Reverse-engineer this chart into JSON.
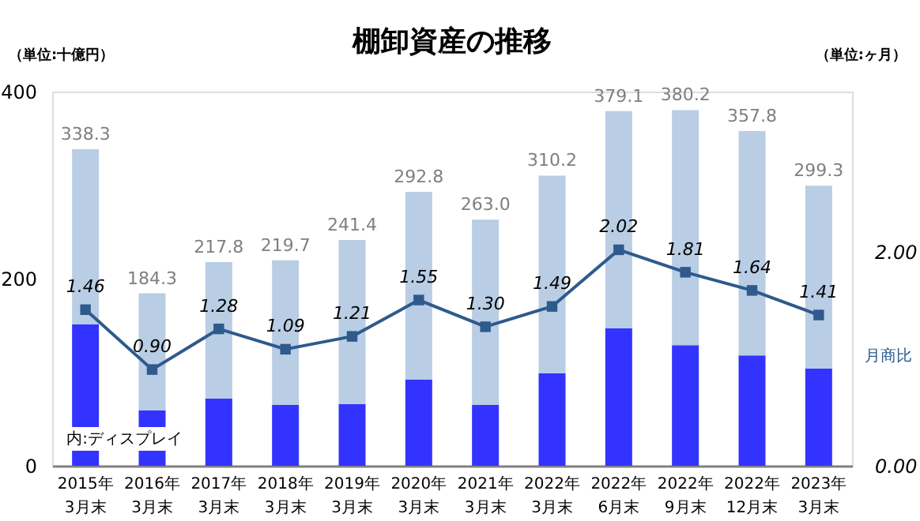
{
  "chart_data": {
    "type": "bar",
    "stacked": true,
    "title": "棚卸資産の推移",
    "ylabel": "（単位:十億円）",
    "y2label": "（単位:ヶ月）",
    "categories": [
      "2015年\n3月末",
      "2016年\n3月末",
      "2017年\n3月末",
      "2018年\n3月末",
      "2019年\n3月末",
      "2020年\n3月末",
      "2021年\n3月末",
      "2022年\n3月末",
      "2022年\n6月末",
      "2022年\n9月末",
      "2022年\n12月末",
      "2023年\n3月末"
    ],
    "series": [
      {
        "name": "内:ディスプレイ",
        "color": "#3333ff",
        "values": [
          151,
          59,
          72,
          65,
          66,
          92,
          65,
          99,
          147,
          129,
          118,
          104
        ]
      },
      {
        "color": "#b9cde5",
        "values": [
          187.3,
          125.3,
          145.8,
          154.7,
          175.4,
          200.8,
          198.0,
          211.2,
          232.1,
          251.2,
          239.8,
          195.3
        ]
      },
      {
        "name": "月商比",
        "type": "line",
        "axis": "y2",
        "color": "#2e5a8c",
        "marker": "square",
        "values": [
          1.46,
          0.9,
          1.28,
          1.09,
          1.21,
          1.55,
          1.3,
          1.49,
          2.02,
          1.81,
          1.64,
          1.41
        ],
        "value_labels": [
          "1.46",
          "0.90",
          "1.28",
          "1.09",
          "1.21",
          "1.55",
          "1.30",
          "1.49",
          "2.02",
          "1.81",
          "1.64",
          "1.41"
        ]
      }
    ],
    "totals": [
      "338.3",
      "184.3",
      "217.8",
      "219.7",
      "241.4",
      "292.8",
      "263.0",
      "310.2",
      "379.1",
      "380.2",
      "357.8",
      "299.3"
    ],
    "ylim": [
      0,
      400
    ],
    "yticks": [
      0,
      200,
      400
    ],
    "y2lim": [
      0,
      3.5
    ],
    "y2ticks": [
      {
        "value": 0,
        "label": "0.00"
      },
      {
        "value": 2,
        "label": "2.00"
      }
    ],
    "grid": false,
    "legend": false
  }
}
